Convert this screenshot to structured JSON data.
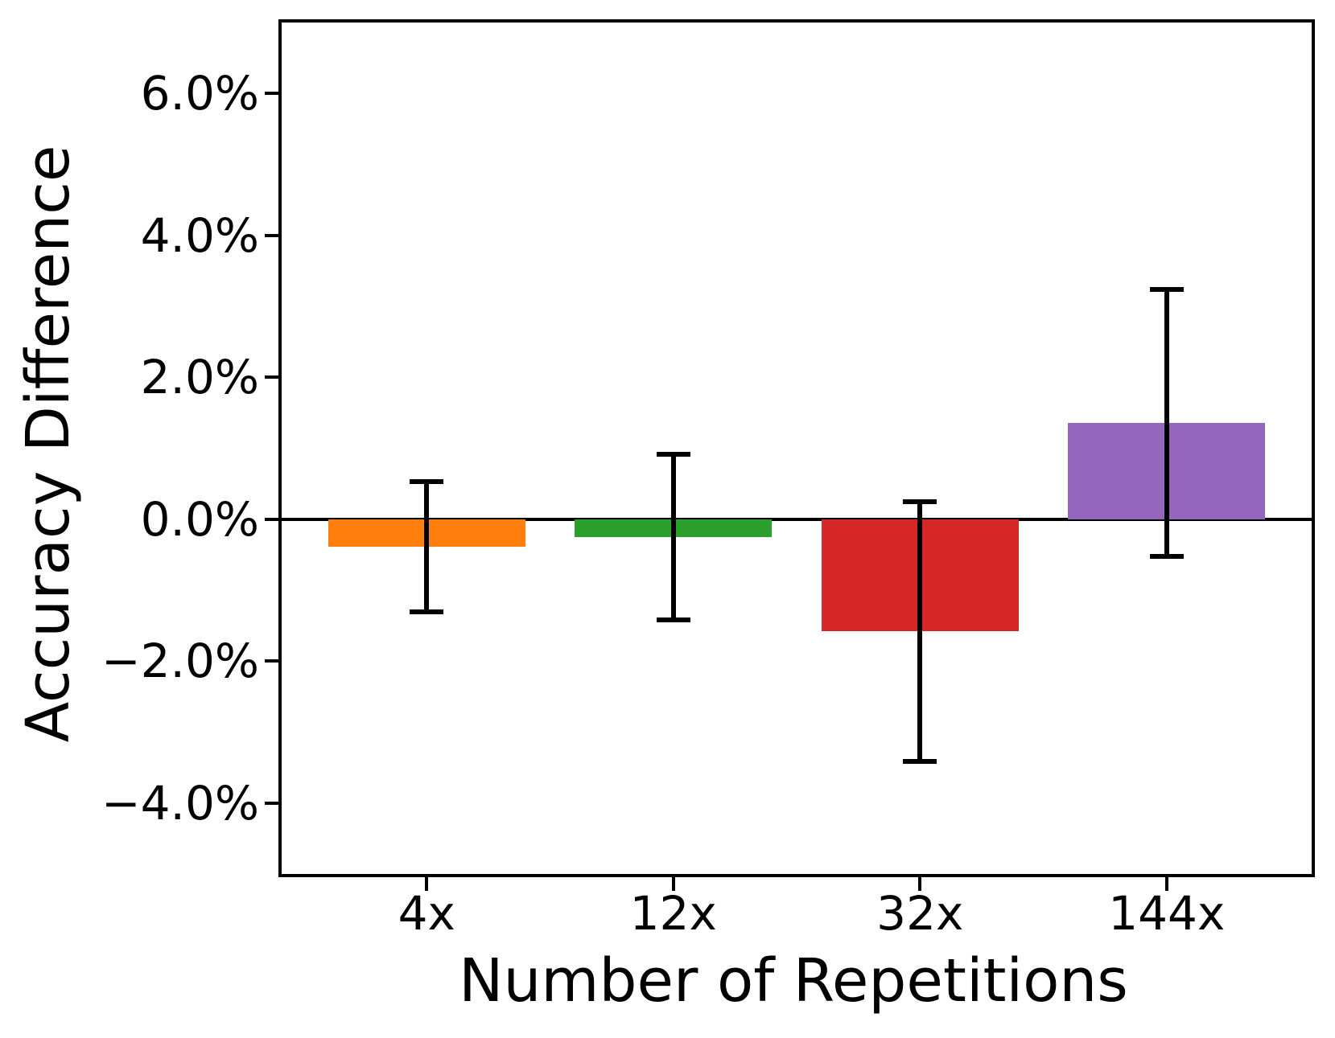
{
  "chart_data": {
    "type": "bar",
    "title": "",
    "xlabel": "Number of Repetitions",
    "ylabel": "Accuracy Difference",
    "categories": [
      "4x",
      "12x",
      "32x",
      "144x"
    ],
    "values": [
      -0.39,
      -0.25,
      -1.58,
      1.36
    ],
    "errors": [
      0.92,
      1.17,
      1.83,
      1.88
    ],
    "unit": "%",
    "bar_colors": [
      "#ff7f0e",
      "#2ca02c",
      "#d62728",
      "#9467bd"
    ],
    "error_bar_color": "#000000",
    "axis_color": "#000000",
    "background_color": "#ffffff",
    "ylim": [
      -5.0,
      7.0
    ],
    "yticks": [
      6,
      4,
      2,
      0,
      -2,
      -4
    ],
    "ytick_labels": [
      "6.0%",
      "4.0%",
      "2.0%",
      "0.0%",
      "−2.0%",
      "−4.0%"
    ],
    "zero_line": true,
    "grid": false,
    "legend": "none"
  }
}
